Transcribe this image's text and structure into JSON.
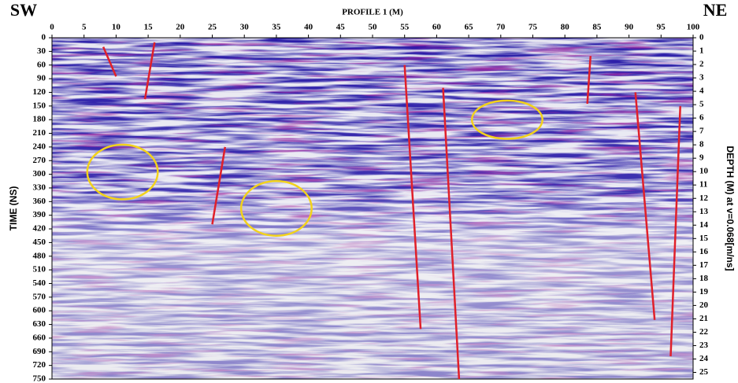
{
  "chart_data": {
    "type": "radargram",
    "title": "PROFILE 1 (M)",
    "corner_left": "SW",
    "corner_right": "NE",
    "y_label": "TIME (NS)",
    "y2_label": "DEPTH (M) at v=0.068[m/ns]",
    "xlim": [
      0,
      100
    ],
    "xticks": [
      0,
      5,
      10,
      15,
      20,
      25,
      30,
      35,
      40,
      45,
      50,
      55,
      60,
      65,
      70,
      75,
      80,
      85,
      90,
      95,
      100
    ],
    "ylim": [
      0,
      750
    ],
    "yticks": [
      0,
      30,
      60,
      90,
      120,
      150,
      180,
      210,
      240,
      270,
      300,
      330,
      360,
      390,
      420,
      450,
      480,
      510,
      540,
      570,
      600,
      630,
      660,
      690,
      720,
      750
    ],
    "y2lim": [
      0,
      25.5
    ],
    "y2ticks": [
      0,
      1,
      2,
      3,
      4,
      5,
      6,
      7,
      8,
      9,
      10,
      11,
      12,
      13,
      14,
      15,
      16,
      17,
      18,
      19,
      20,
      21,
      22,
      23,
      24,
      25
    ],
    "faults": {
      "color": "#e0202a",
      "lines": [
        {
          "x": [
            8,
            10
          ],
          "y": [
            20,
            85
          ]
        },
        {
          "x": [
            16,
            14.5
          ],
          "y": [
            10,
            135
          ]
        },
        {
          "x": [
            27,
            25
          ],
          "y": [
            240,
            410
          ]
        },
        {
          "x": [
            55,
            57.5
          ],
          "y": [
            60,
            640
          ]
        },
        {
          "x": [
            61,
            63.5
          ],
          "y": [
            110,
            750
          ]
        },
        {
          "x": [
            84,
            83.5
          ],
          "y": [
            40,
            145
          ]
        },
        {
          "x": [
            91,
            94
          ],
          "y": [
            120,
            620
          ]
        },
        {
          "x": [
            98,
            96.5
          ],
          "y": [
            150,
            700
          ]
        }
      ]
    },
    "anomalies": {
      "color": "#f2d21b",
      "ellipses": [
        {
          "x": 11,
          "y": 295,
          "rx": 5.5,
          "ry": 60
        },
        {
          "x": 35,
          "y": 375,
          "rx": 5.5,
          "ry": 60
        },
        {
          "x": 71,
          "y": 180,
          "rx": 5.5,
          "ry": 42
        }
      ]
    }
  }
}
